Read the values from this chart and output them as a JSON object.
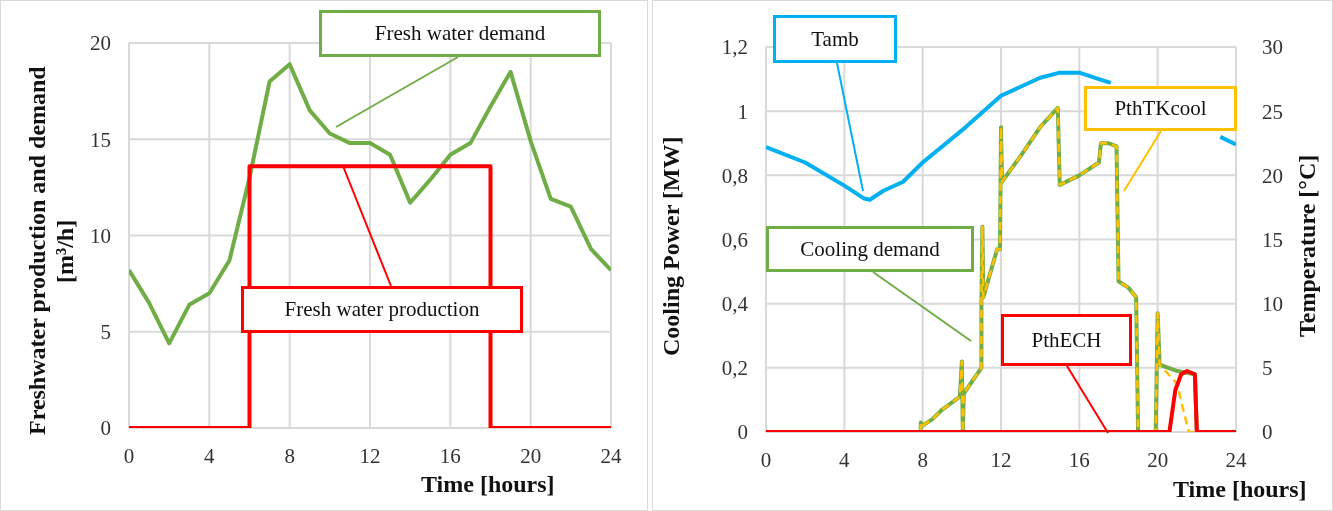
{
  "chart_data": [
    {
      "type": "line",
      "xlabel": "Time [hours]",
      "ylabel": "Freshwater production and demand [m³/h]",
      "xlim": [
        0,
        24
      ],
      "xticks": [
        0,
        4,
        8,
        12,
        16,
        20,
        24
      ],
      "ylim": [
        0,
        20
      ],
      "yticks": [
        0,
        5,
        10,
        15,
        20
      ],
      "grid": true,
      "line_style": "solid",
      "series": [
        {
          "name": "Fresh water demand",
          "color": "#70ad47",
          "x": [
            0,
            1,
            2,
            3,
            4,
            5,
            6,
            7,
            8,
            9,
            10,
            11,
            12,
            13,
            14,
            15,
            16,
            17,
            18,
            19,
            20,
            21,
            22,
            23,
            24
          ],
          "values": [
            8.2,
            6.5,
            4.4,
            6.4,
            7.0,
            8.7,
            13,
            18,
            18.9,
            16.5,
            15.3,
            14.8,
            14.8,
            14.2,
            11.7,
            12.9,
            14.2,
            14.8,
            16.7,
            18.5,
            14.9,
            11.9,
            11.5,
            9.3,
            8.2
          ]
        },
        {
          "name": "Fresh water production",
          "color": "#ff0000",
          "x": [
            0,
            6,
            6,
            18,
            18,
            24
          ],
          "values": [
            0,
            0,
            13.6,
            13.6,
            0,
            0
          ]
        }
      ]
    },
    {
      "type": "line",
      "xlabel": "Time [hours]",
      "ylabel": "Cooling Power [MW]",
      "y2label": "Temperature [°C]",
      "xlim": [
        0,
        24
      ],
      "xticks": [
        0,
        4,
        8,
        12,
        16,
        20,
        24
      ],
      "ylim": [
        0,
        1.2
      ],
      "yticks": [
        0,
        {
          "value": 0.2,
          "label": "0,2"
        },
        {
          "value": 0.4,
          "label": "0,4"
        },
        {
          "value": 0.6,
          "label": "0,6"
        },
        {
          "value": 0.8,
          "label": "0,8"
        },
        1,
        {
          "value": 1.2,
          "label": "1,2"
        }
      ],
      "y2lim": [
        0,
        30
      ],
      "y2ticks": [
        0,
        5,
        10,
        15,
        20,
        25,
        30
      ],
      "grid": true,
      "series": [
        {
          "name": "Tamb",
          "color": "#00b0f0",
          "axis": "y2",
          "line_style": "solid",
          "x": [
            0,
            2,
            4,
            5,
            5.3,
            6,
            7,
            8,
            10,
            12,
            14,
            15,
            16,
            17,
            17.6,
            20,
            23.2,
            24
          ],
          "values": [
            22.2,
            21,
            19.2,
            18.2,
            18.1,
            18.8,
            19.5,
            21,
            23.5,
            26.2,
            27.6,
            28,
            28,
            27.5,
            27.2,
            null,
            23,
            22.4
          ]
        },
        {
          "name": "Cooling demand",
          "color": "#70ad47",
          "line_style": "solid",
          "x": [
            7.9,
            7.9,
            8,
            8.5,
            9,
            9.9,
            10,
            10.05,
            10.1,
            11,
            11,
            11.05,
            11.1,
            11.8,
            11.95,
            12,
            12.05,
            13,
            14,
            14.9,
            15,
            16,
            17,
            17.1,
            17.5,
            17.9,
            18,
            18.5,
            18.9,
            19,
            19.9,
            20,
            20.1,
            21,
            21.9,
            22,
            24
          ],
          "values": [
            0,
            0.03,
            0.02,
            0.04,
            0.07,
            0.11,
            0.22,
            0,
            0.12,
            0.2,
            0.4,
            0.64,
            0.42,
            0.57,
            0.57,
            0.95,
            0.78,
            0.86,
            0.95,
            1.01,
            0.77,
            0.8,
            0.84,
            0.9,
            0.9,
            0.89,
            0.47,
            0.45,
            0.42,
            0,
            0,
            0.37,
            0.21,
            0.19,
            0.18,
            0,
            0
          ]
        },
        {
          "name": "PthTKcool",
          "color": "#ffc000",
          "line_style": "dashed",
          "x": [
            7.9,
            7.9,
            8,
            8.5,
            9,
            9.9,
            10,
            10.05,
            10.1,
            11,
            11,
            11.05,
            11.1,
            11.8,
            11.95,
            12,
            12.05,
            13,
            14,
            14.9,
            15,
            16,
            17,
            17.1,
            17.5,
            17.9,
            18,
            18.5,
            18.9,
            19,
            19.9,
            20,
            20.1,
            21,
            21.3,
            21.6,
            22,
            24
          ],
          "values": [
            0,
            0.03,
            0.02,
            0.04,
            0.07,
            0.11,
            0.22,
            0,
            0.12,
            0.2,
            0.4,
            0.64,
            0.42,
            0.57,
            0.57,
            0.95,
            0.78,
            0.86,
            0.95,
            1.01,
            0.77,
            0.8,
            0.84,
            0.9,
            0.9,
            0.89,
            0.47,
            0.45,
            0.42,
            0,
            0,
            0.37,
            0.21,
            0.15,
            0.07,
            0,
            0,
            0
          ]
        },
        {
          "name": "PthECH",
          "color": "#ff0000",
          "line_style": "solid",
          "x": [
            0,
            20.6,
            20.9,
            21.2,
            21.5,
            21.9,
            22,
            24
          ],
          "values": [
            0,
            0,
            0.13,
            0.18,
            0.19,
            0.18,
            0,
            0
          ]
        }
      ]
    }
  ]
}
